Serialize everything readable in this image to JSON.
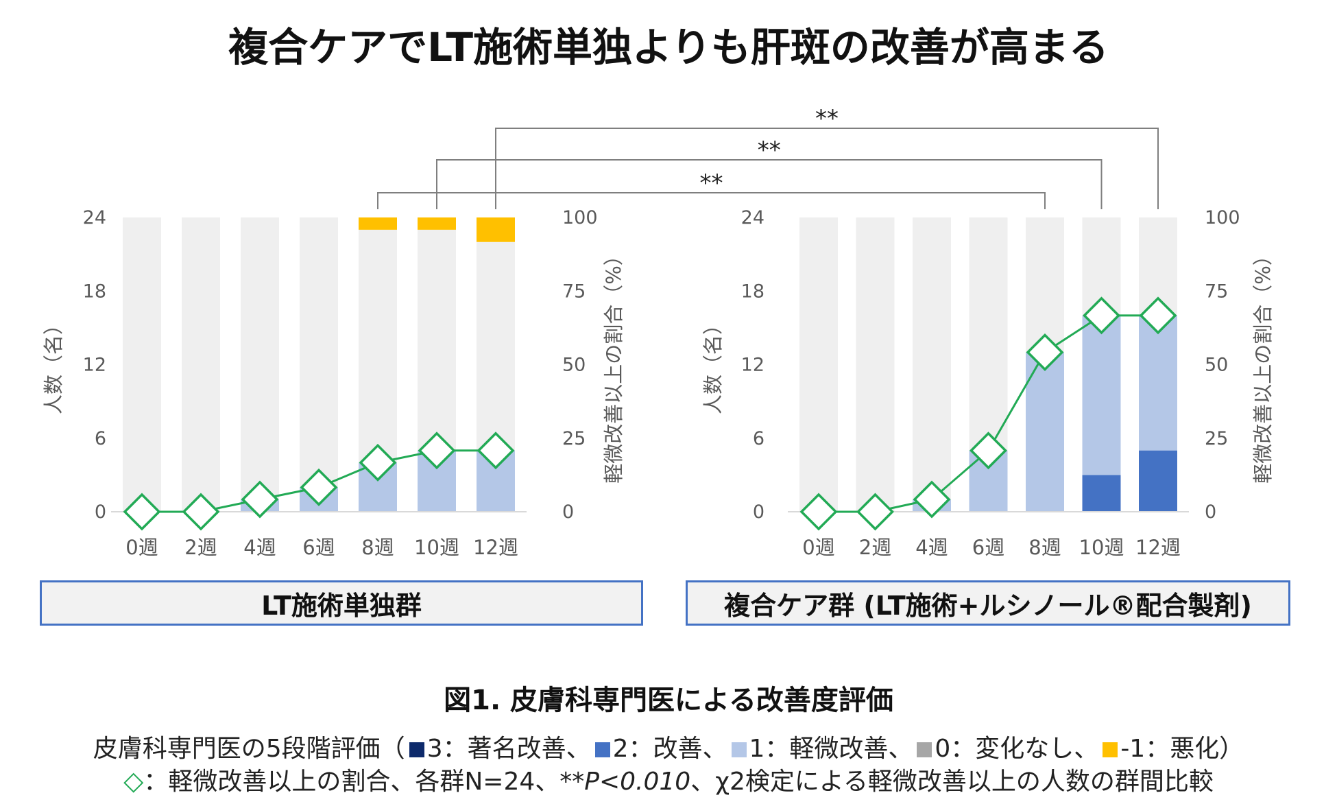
{
  "title": "複合ケアでLT施術単独よりも肝斑の改善が高まる",
  "chart_data": [
    {
      "type": "bar",
      "stacked": true,
      "group_label": "LT施術単独群",
      "categories": [
        "0週",
        "2週",
        "4週",
        "6週",
        "8週",
        "10週",
        "12週"
      ],
      "ylabel": "人数（名）",
      "y2label": "軽微改善以上の割合（%）",
      "ylim": [
        0,
        24
      ],
      "y2lim": [
        0,
        100
      ],
      "yticks": [
        "0",
        "6",
        "12",
        "18",
        "24"
      ],
      "y2ticks": [
        "0",
        "25",
        "50",
        "75",
        "100"
      ],
      "series": [
        {
          "name": "3：著名改善",
          "color": "#0d2a6b",
          "values": [
            0,
            0,
            0,
            0,
            0,
            0,
            0
          ]
        },
        {
          "name": "2：改善",
          "color": "#4472c4",
          "values": [
            0,
            0,
            0,
            0,
            0,
            0,
            0
          ]
        },
        {
          "name": "1：軽微改善",
          "color": "#b4c7e7",
          "values": [
            0,
            0,
            1,
            2,
            4,
            5,
            5
          ]
        },
        {
          "name": "0：変化なし",
          "color": "#efefef",
          "values": [
            24,
            24,
            23,
            22,
            19,
            18,
            17
          ]
        },
        {
          "name": "-1：悪化",
          "color": "#ffc000",
          "values": [
            0,
            0,
            0,
            0,
            1,
            1,
            2
          ]
        }
      ],
      "line": {
        "name": "軽微改善以上の割合",
        "color": "#22aa55",
        "values": [
          0,
          0,
          4.2,
          8.3,
          16.7,
          20.8,
          20.8
        ]
      }
    },
    {
      "type": "bar",
      "stacked": true,
      "group_label": "複合ケア群 (LT施術+ルシノール®配合製剤)",
      "categories": [
        "0週",
        "2週",
        "4週",
        "6週",
        "8週",
        "10週",
        "12週"
      ],
      "ylabel": "人数（名）",
      "y2label": "軽微改善以上の割合（%）",
      "ylim": [
        0,
        24
      ],
      "y2lim": [
        0,
        100
      ],
      "yticks": [
        "0",
        "6",
        "12",
        "18",
        "24"
      ],
      "y2ticks": [
        "0",
        "25",
        "50",
        "75",
        "100"
      ],
      "series": [
        {
          "name": "3：著名改善",
          "color": "#0d2a6b",
          "values": [
            0,
            0,
            0,
            0,
            0,
            0,
            0
          ]
        },
        {
          "name": "2：改善",
          "color": "#4472c4",
          "values": [
            0,
            0,
            0,
            0,
            0,
            3,
            5
          ]
        },
        {
          "name": "1：軽微改善",
          "color": "#b4c7e7",
          "values": [
            0,
            0,
            1,
            5,
            13,
            13,
            11
          ]
        },
        {
          "name": "0：変化なし",
          "color": "#efefef",
          "values": [
            24,
            24,
            23,
            19,
            11,
            8,
            8
          ]
        },
        {
          "name": "-1：悪化",
          "color": "#ffc000",
          "values": [
            0,
            0,
            0,
            0,
            0,
            0,
            0
          ]
        }
      ],
      "line": {
        "name": "軽微改善以上の割合",
        "color": "#22aa55",
        "values": [
          0,
          0,
          4.2,
          20.8,
          54.2,
          66.7,
          66.7
        ]
      }
    }
  ],
  "significance": [
    {
      "label": "**",
      "from": "8週",
      "to": "8週"
    },
    {
      "label": "**",
      "from": "10週",
      "to": "10週"
    },
    {
      "label": "**",
      "from": "12週",
      "to": "12週"
    }
  ],
  "figure_caption": "図1. 皮膚科専門医による改善度評価",
  "legend": {
    "prefix": "皮膚科専門医の5段階評価（",
    "items": [
      {
        "label": "3：著名改善、",
        "color": "#0d2a6b"
      },
      {
        "label": "2：改善、",
        "color": "#4472c4"
      },
      {
        "label": "1：軽微改善、",
        "color": "#b4c7e7"
      },
      {
        "label": "0：変化なし、",
        "color": "#a6a6a6"
      },
      {
        "label": "-1：悪化）",
        "color": "#ffc000"
      }
    ],
    "note_symbol": "◇",
    "note_a": "：軽微改善以上の割合、各群N=24、",
    "note_p": "**P<0.010",
    "note_b": "、χ2検定による軽微改善以上の人数の群間比較"
  }
}
